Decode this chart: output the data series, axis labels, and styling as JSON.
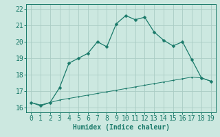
{
  "title": "",
  "xlabel": "Humidex (Indice chaleur)",
  "background_color": "#cce8e0",
  "grid_color": "#aaccc4",
  "line_color": "#1a7a6a",
  "xlim": [
    -0.5,
    19.5
  ],
  "ylim": [
    15.7,
    22.3
  ],
  "xticks": [
    0,
    1,
    2,
    3,
    4,
    5,
    6,
    7,
    8,
    9,
    10,
    11,
    12,
    13,
    14,
    15,
    16,
    17,
    18,
    19
  ],
  "yticks": [
    16,
    17,
    18,
    19,
    20,
    21,
    22
  ],
  "main_x": [
    0,
    1,
    2,
    3,
    4,
    5,
    6,
    7,
    8,
    9,
    10,
    11,
    12,
    13,
    14,
    15,
    16,
    17,
    18,
    19
  ],
  "main_y": [
    16.3,
    16.1,
    16.3,
    17.2,
    18.7,
    19.0,
    19.3,
    20.0,
    19.7,
    21.1,
    21.6,
    21.35,
    21.5,
    20.6,
    20.1,
    19.75,
    20.0,
    18.9,
    17.8,
    17.6
  ],
  "lower_x": [
    0,
    1,
    2,
    3,
    4,
    5,
    6,
    7,
    8,
    9,
    10,
    11,
    12,
    13,
    14,
    15,
    16,
    17,
    18,
    19
  ],
  "lower_y": [
    16.3,
    16.15,
    16.3,
    16.45,
    16.55,
    16.65,
    16.75,
    16.85,
    16.95,
    17.05,
    17.15,
    17.25,
    17.35,
    17.45,
    17.55,
    17.65,
    17.75,
    17.85,
    17.8,
    17.6
  ],
  "font_color": "#1a7a6a",
  "xlabel_fontsize": 7,
  "tick_fontsize": 7
}
